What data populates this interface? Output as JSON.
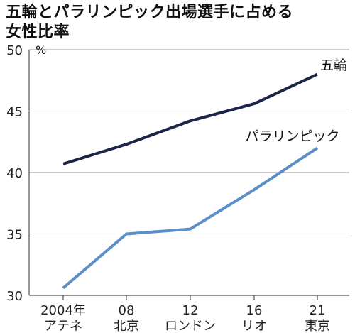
{
  "title_lines": [
    "五輪とパラリンピック出場選手に占める",
    "女性比率"
  ],
  "chart_data": {
    "type": "line",
    "title": "五輪とパラリンピック出場選手に占める女性比率",
    "ylabel": "%",
    "ylim": [
      30,
      50
    ],
    "yticks": [
      30,
      35,
      40,
      45,
      50
    ],
    "grid": true,
    "x_labels": [
      {
        "top": "2004年",
        "bottom": "アテネ"
      },
      {
        "top": "08",
        "bottom": "北京"
      },
      {
        "top": "12",
        "bottom": "ロンドン"
      },
      {
        "top": "16",
        "bottom": "リオ"
      },
      {
        "top": "21",
        "bottom": "東京"
      }
    ],
    "series": [
      {
        "name": "五輪",
        "color": "#1b2547",
        "values": [
          40.7,
          42.3,
          44.2,
          45.6,
          48.0
        ]
      },
      {
        "name": "パラリンピック",
        "color": "#5b8fc7",
        "values": [
          30.6,
          35.0,
          35.4,
          38.6,
          42.0
        ]
      }
    ]
  }
}
